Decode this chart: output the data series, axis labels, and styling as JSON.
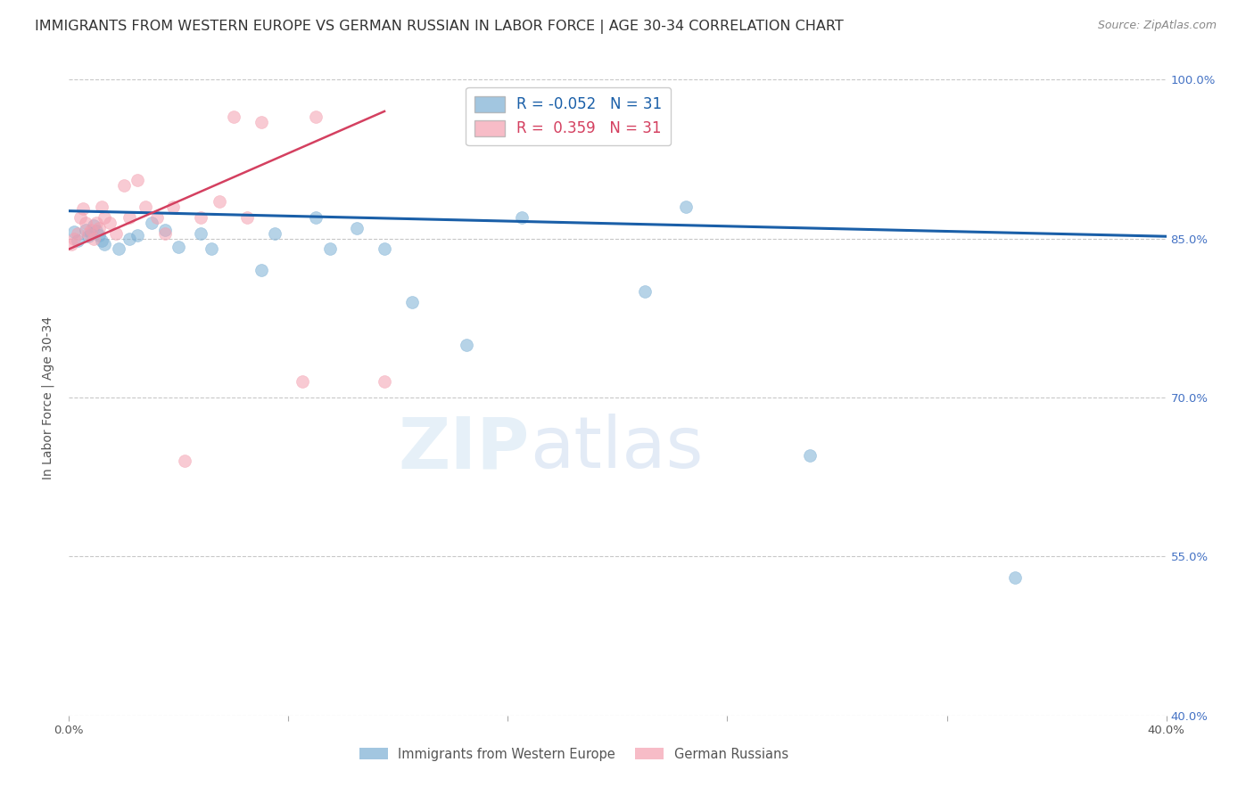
{
  "title": "IMMIGRANTS FROM WESTERN EUROPE VS GERMAN RUSSIAN IN LABOR FORCE | AGE 30-34 CORRELATION CHART",
  "source": "Source: ZipAtlas.com",
  "ylabel": "In Labor Force | Age 30-34",
  "xlim": [
    0.0,
    0.4
  ],
  "ylim": [
    0.4,
    1.0
  ],
  "yticks": [
    0.4,
    0.55,
    0.7,
    0.85,
    1.0
  ],
  "ytick_labels": [
    "40.0%",
    "55.0%",
    "70.0%",
    "85.0%",
    "100.0%"
  ],
  "xticks": [
    0.0,
    0.08,
    0.16,
    0.24,
    0.32,
    0.4
  ],
  "xtick_labels": [
    "0.0%",
    "",
    "",
    "",
    "",
    "40.0%"
  ],
  "blue_x": [
    0.002,
    0.003,
    0.006,
    0.007,
    0.008,
    0.009,
    0.01,
    0.011,
    0.012,
    0.013,
    0.018,
    0.022,
    0.025,
    0.03,
    0.035,
    0.04,
    0.048,
    0.052,
    0.07,
    0.075,
    0.09,
    0.095,
    0.105,
    0.115,
    0.125,
    0.145,
    0.165,
    0.21,
    0.225,
    0.27,
    0.345
  ],
  "blue_y": [
    0.856,
    0.848,
    0.858,
    0.852,
    0.855,
    0.862,
    0.857,
    0.853,
    0.848,
    0.845,
    0.84,
    0.85,
    0.853,
    0.865,
    0.858,
    0.842,
    0.855,
    0.84,
    0.82,
    0.855,
    0.87,
    0.84,
    0.86,
    0.84,
    0.79,
    0.75,
    0.87,
    0.8,
    0.88,
    0.645,
    0.53
  ],
  "pink_x": [
    0.001,
    0.002,
    0.003,
    0.004,
    0.005,
    0.006,
    0.007,
    0.008,
    0.009,
    0.01,
    0.011,
    0.012,
    0.013,
    0.015,
    0.017,
    0.02,
    0.022,
    0.025,
    0.028,
    0.032,
    0.035,
    0.038,
    0.042,
    0.048,
    0.055,
    0.06,
    0.065,
    0.07,
    0.085,
    0.09,
    0.115
  ],
  "pink_y": [
    0.845,
    0.85,
    0.855,
    0.87,
    0.878,
    0.865,
    0.855,
    0.858,
    0.85,
    0.865,
    0.86,
    0.88,
    0.87,
    0.865,
    0.855,
    0.9,
    0.87,
    0.905,
    0.88,
    0.87,
    0.855,
    0.88,
    0.64,
    0.87,
    0.885,
    0.965,
    0.87,
    0.96,
    0.715,
    0.965,
    0.715
  ],
  "blue_color": "#7bafd4",
  "pink_color": "#f4a0b0",
  "blue_line_color": "#1a5fa8",
  "pink_line_color": "#d44060",
  "blue_R": -0.052,
  "blue_N": 31,
  "pink_R": 0.359,
  "pink_N": 31,
  "marker_size": 100,
  "marker_alpha": 0.55,
  "watermark_zip": "ZIP",
  "watermark_atlas": "atlas",
  "grid_color": "#c8c8c8",
  "grid_linestyle": "--",
  "background_color": "#ffffff",
  "title_fontsize": 11.5,
  "axis_label_fontsize": 10,
  "tick_fontsize": 9.5,
  "legend_fontsize": 12,
  "right_ytick_color": "#4472c4"
}
